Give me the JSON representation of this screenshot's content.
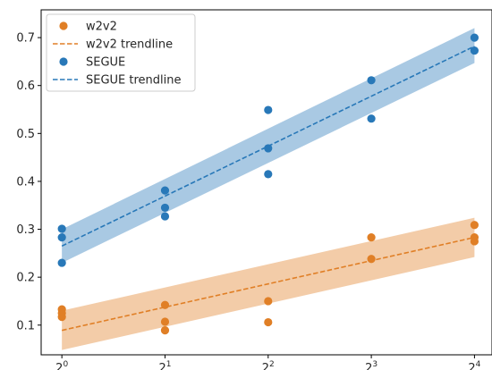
{
  "chart_data": {
    "type": "scatter",
    "x_scale": "log2",
    "x_ticks": [
      {
        "value": 1,
        "base": "2",
        "exp": "0"
      },
      {
        "value": 2,
        "base": "2",
        "exp": "1"
      },
      {
        "value": 4,
        "base": "2",
        "exp": "2"
      },
      {
        "value": 8,
        "base": "2",
        "exp": "3"
      },
      {
        "value": 16,
        "base": "2",
        "exp": "4"
      }
    ],
    "y_ticks": [
      "0.1",
      "0.2",
      "0.3",
      "0.4",
      "0.5",
      "0.6",
      "0.7"
    ],
    "xlim": [
      0.87,
      18.0
    ],
    "ylim": [
      0.038,
      0.758
    ],
    "grid": false,
    "legend_position": "upper-left",
    "series": [
      {
        "name": "w2v2",
        "color": "#e07f26",
        "points": [
          [
            1,
            0.133
          ],
          [
            1,
            0.125
          ],
          [
            1,
            0.117
          ],
          [
            2,
            0.142
          ],
          [
            2,
            0.107
          ],
          [
            2,
            0.089
          ],
          [
            4,
            0.15
          ],
          [
            4,
            0.106
          ],
          [
            8,
            0.283
          ],
          [
            8,
            0.238
          ],
          [
            16,
            0.309
          ],
          [
            16,
            0.283
          ],
          [
            16,
            0.275
          ]
        ],
        "trendline": {
          "name": "w2v2 trendline",
          "start": 0.089,
          "end": 0.283,
          "band_lower_start": 0.048,
          "band_lower_end": 0.242,
          "band_upper_start": 0.13,
          "band_upper_end": 0.324
        }
      },
      {
        "name": "SEGUE",
        "color": "#2878b8",
        "points": [
          [
            1,
            0.301
          ],
          [
            1,
            0.283
          ],
          [
            1,
            0.23
          ],
          [
            2,
            0.381
          ],
          [
            2,
            0.345
          ],
          [
            2,
            0.327
          ],
          [
            4,
            0.549
          ],
          [
            4,
            0.469
          ],
          [
            4,
            0.415
          ],
          [
            8,
            0.611
          ],
          [
            8,
            0.531
          ],
          [
            16,
            0.7
          ],
          [
            16,
            0.673
          ]
        ],
        "trendline": {
          "name": "SEGUE trendline",
          "start": 0.265,
          "end": 0.682,
          "band_lower_start": 0.23,
          "band_lower_end": 0.647,
          "band_upper_start": 0.3,
          "band_upper_end": 0.72
        }
      }
    ],
    "legend": [
      {
        "label": "w2v2",
        "kind": "marker",
        "series": 0
      },
      {
        "label": "w2v2 trendline",
        "kind": "line",
        "series": 0
      },
      {
        "label": "SEGUE",
        "kind": "marker",
        "series": 1
      },
      {
        "label": "SEGUE trendline",
        "kind": "line",
        "series": 1
      }
    ]
  }
}
